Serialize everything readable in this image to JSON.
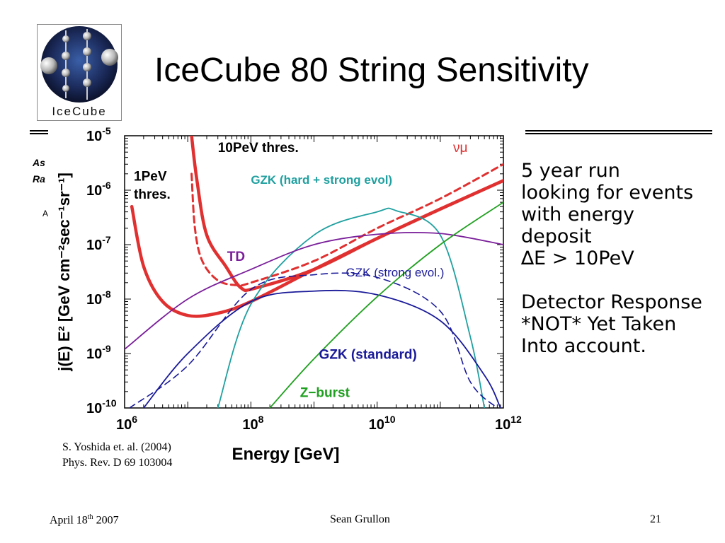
{
  "slide": {
    "title": "IceCube 80 String Sensitivity",
    "logo_text": "IceCube",
    "hidden_fragments": [
      "As",
      "Ra",
      "A"
    ],
    "notes": [
      "5 year run",
      "looking for events",
      "with energy",
      "deposit",
      "∆E > 10PeV",
      "",
      "Detector Response",
      "*NOT* Yet Taken",
      "Into account."
    ],
    "citation": [
      "S. Yoshida et. al. (2004)",
      "Phys. Rev. D 69 103004"
    ],
    "footer": {
      "date_prefix": "April 18",
      "date_sup": "th",
      "date_year": " 2007",
      "author": "Sean Grullon",
      "page": "21"
    }
  },
  "colors": {
    "red": "#e03030",
    "teal": "#20a0a0",
    "green": "#20a020",
    "purple": "#7a1f9a",
    "blue": "#1a1a99"
  },
  "chart_data": {
    "type": "line",
    "xlabel": "Energy [GeV]",
    "ylabel": "j(E) E²  [GeV cm⁻²sec⁻¹sr⁻¹]",
    "xscale": "log",
    "yscale": "log",
    "xlim": [
      1000000.0,
      1000000000000.0
    ],
    "ylim": [
      1e-10,
      1e-05
    ],
    "x_ticks": [
      {
        "base": "10",
        "exp": "6",
        "value": 1000000.0
      },
      {
        "base": "10",
        "exp": "8",
        "value": 100000000.0
      },
      {
        "base": "10",
        "exp": "10",
        "value": 10000000000.0
      },
      {
        "base": "10",
        "exp": "12",
        "value": 1000000000000.0
      }
    ],
    "y_ticks": [
      {
        "base": "10",
        "exp": "-5",
        "value": 1e-05
      },
      {
        "base": "10",
        "exp": "-6",
        "value": 1e-06
      },
      {
        "base": "10",
        "exp": "-7",
        "value": 1e-07
      },
      {
        "base": "10",
        "exp": "-8",
        "value": 1e-08
      },
      {
        "base": "10",
        "exp": "-9",
        "value": 1e-09
      },
      {
        "base": "10",
        "exp": "-10",
        "value": 1e-10
      }
    ],
    "series": [
      {
        "name": "1PeV thres.",
        "color": "#e03030",
        "dash": false,
        "width": 4.5,
        "x": [
          1300000.0,
          2000000.0,
          4000000.0,
          10000000.0,
          30000000.0,
          100000000.0,
          1000000000.0,
          10000000000.0,
          100000000000.0,
          1000000000000.0
        ],
        "y": [
          5e-07,
          4e-08,
          9e-09,
          5e-09,
          5.5e-09,
          9e-09,
          3.5e-08,
          1.3e-07,
          4.5e-07,
          1.5e-06
        ]
      },
      {
        "name": "10PeV thres.",
        "color": "#e03030",
        "dash": false,
        "width": 4.5,
        "x": [
          11500000.0,
          14000000.0,
          20000000.0,
          40000000.0,
          70000000.0,
          120000000.0,
          1000000000.0,
          10000000000.0,
          100000000000.0,
          1000000000000.0
        ],
        "y": [
          1e-05,
          1.5e-06,
          1.5e-07,
          4e-08,
          1.6e-08,
          1.6e-08,
          3.5e-08,
          1.3e-07,
          4.5e-07,
          1.5e-06
        ]
      },
      {
        "name": "νμ",
        "color": "#e03030",
        "dash": true,
        "width": 3,
        "x": [
          11500000.0,
          13000000.0,
          17000000.0,
          30000000.0,
          60000000.0,
          100000000.0,
          1000000000.0,
          10000000000.0,
          100000000000.0,
          1000000000000.0
        ],
        "y": [
          2e-06,
          2e-07,
          5e-08,
          2.2e-08,
          1.8e-08,
          2e-08,
          5e-08,
          2e-07,
          7e-07,
          3e-06
        ]
      },
      {
        "name": "GZK (hard + strong evol)",
        "color": "#20a0a0",
        "dash": false,
        "width": 1.8,
        "x": [
          30000000.0,
          100000000.0,
          1000000000.0,
          10000000000.0,
          20000000000.0,
          100000000000.0,
          300000000000.0,
          500000000000.0
        ],
        "y": [
          1e-10,
          8e-09,
          1.5e-07,
          4e-07,
          4.2e-07,
          1.5e-07,
          2e-09,
          1e-10
        ]
      },
      {
        "name": "TD",
        "color": "#7a1f9a",
        "dash": false,
        "width": 1.8,
        "x": [
          1000000.0,
          10000000.0,
          100000000.0,
          1000000000.0,
          10000000000.0,
          100000000000.0,
          1000000000000.0
        ],
        "y": [
          1.2e-09,
          1e-08,
          3.5e-08,
          1e-07,
          1.55e-07,
          1.6e-07,
          1e-07
        ]
      },
      {
        "name": "GZK (strong evol.)",
        "color": "#1a1a99",
        "dash": true,
        "width": 1.6,
        "x": [
          1200000.0,
          10000000.0,
          100000000.0,
          1000000000.0,
          10000000000.0,
          100000000000.0,
          300000000000.0,
          800000000000.0
        ],
        "y": [
          1e-10,
          6e-10,
          1.5e-08,
          2.8e-08,
          2.5e-08,
          6e-09,
          3e-10,
          1e-10
        ]
      },
      {
        "name": "GZK (standard)",
        "color": "#1a1a99",
        "dash": false,
        "width": 1.8,
        "x": [
          2000000.0,
          10000000.0,
          100000000.0,
          1000000000.0,
          10000000000.0,
          100000000000.0,
          500000000000.0,
          900000000000.0
        ],
        "y": [
          1e-10,
          1e-09,
          9e-09,
          1.4e-08,
          1.2e-08,
          4e-09,
          4e-10,
          1e-10
        ]
      },
      {
        "name": "Z−burst",
        "color": "#20a020",
        "dash": false,
        "width": 1.8,
        "x": [
          200000000.0,
          1000000000.0,
          10000000000.0,
          100000000000.0,
          1000000000000.0
        ],
        "y": [
          1e-10,
          8e-10,
          1.1e-08,
          1e-07,
          6e-07
        ]
      }
    ],
    "annotations": [
      {
        "text": "10PeV thres.",
        "color": "#000000",
        "x": 30000000.0,
        "y": 5e-06,
        "bold": true
      },
      {
        "text": "1PeV",
        "color": "#000000",
        "x": 1400000.0,
        "y": 1.5e-06,
        "bold": true
      },
      {
        "text": "thres.",
        "color": "#000000",
        "x": 1400000.0,
        "y": 7e-07,
        "bold": true
      },
      {
        "text": "GZK (hard + strong evol)",
        "color": "#20a0a0",
        "x": 100000000.0,
        "y": 1.3e-06,
        "bold": true
      },
      {
        "text": "TD",
        "color": "#7a1f9a",
        "x": 42000000.0,
        "y": 5e-08,
        "bold": true
      },
      {
        "text": "GZK (strong evol.)",
        "color": "#1a1a99",
        "x": 3200000000.0,
        "y": 2.6e-08,
        "bold": false
      },
      {
        "text": "GZK (standard)",
        "color": "#1a1a99",
        "x": 1200000000.0,
        "y": 8e-10,
        "bold": true
      },
      {
        "text": "Z−burst",
        "color": "#20a020",
        "x": 600000000.0,
        "y": 1.6e-10,
        "bold": true
      },
      {
        "text": "νμ",
        "color": "#e03030",
        "x": 160000000000.0,
        "y": 5e-06,
        "bold": false
      }
    ]
  }
}
